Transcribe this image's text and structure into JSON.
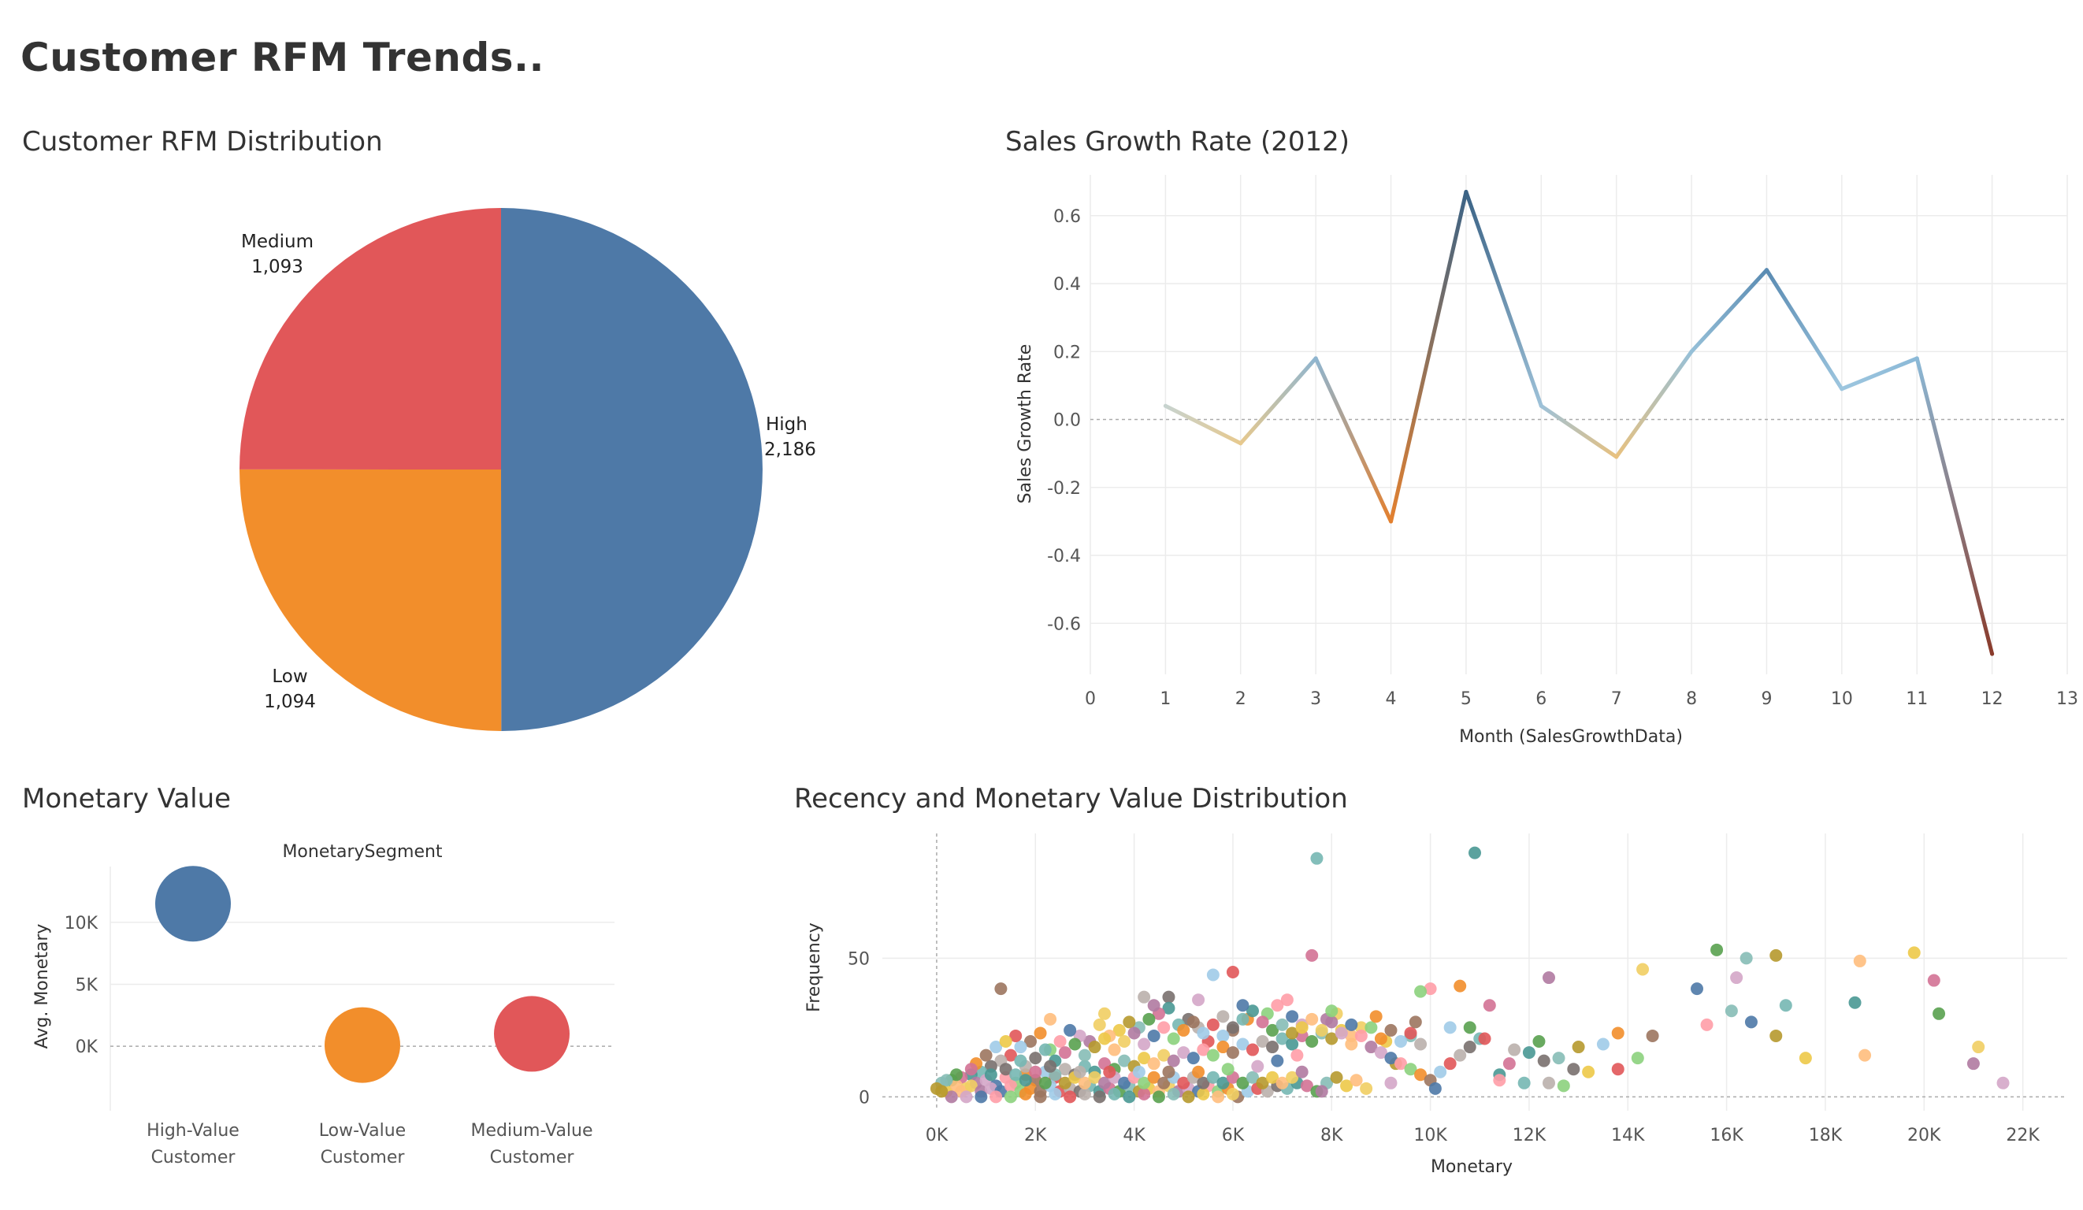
{
  "dashboard": {
    "title": "Customer RFM Trends.."
  },
  "panels": {
    "pie_title": "Customer RFM Distribution",
    "line_title": "Sales Growth Rate (2012)",
    "bubble_title": "Monetary Value",
    "scatter_title": "Recency and Monetary Value Distribution"
  },
  "chart_data": [
    {
      "type": "pie",
      "slices": [
        {
          "label": "High",
          "value_label": "2,186",
          "value": 2186,
          "color": "#4e79a7"
        },
        {
          "label": "Low",
          "value_label": "1,094",
          "value": 1094,
          "color": "#f28e2b"
        },
        {
          "label": "Medium",
          "value_label": "1,093",
          "value": 1093,
          "color": "#e15759"
        }
      ]
    },
    {
      "type": "line",
      "xlabel": "Month (SalesGrowthData)",
      "ylabel": "Sales Growth Rate",
      "xlim": [
        0,
        13
      ],
      "ylim": [
        -0.75,
        0.72
      ],
      "xticks": [
        0,
        1,
        2,
        3,
        4,
        5,
        6,
        7,
        8,
        9,
        10,
        11,
        12,
        13
      ],
      "yticks": [
        0.6,
        0.4,
        0.2,
        0.0,
        -0.2,
        -0.4,
        -0.6
      ],
      "ytick_labels": [
        "0.6",
        "0.4",
        "0.2",
        "0.0",
        "-0.2",
        "-0.4",
        "-0.6"
      ],
      "x": [
        1,
        2,
        3,
        4,
        5,
        6,
        7,
        8,
        9,
        10,
        11,
        12
      ],
      "y": [
        0.04,
        -0.07,
        0.18,
        -0.3,
        0.67,
        0.04,
        -0.11,
        0.2,
        0.44,
        0.09,
        0.18,
        -0.69
      ],
      "colors": [
        "#c7d3cf",
        "#e7c98e",
        "#8fb5cf",
        "#e3802f",
        "#3b6386",
        "#9dc1d8",
        "#e8c17f",
        "#96c0d8",
        "#5a8bb2",
        "#9dc6df",
        "#8bb9d7",
        "#8a3b2b"
      ]
    },
    {
      "type": "scatter",
      "subtitle": "MonetarySegment",
      "ylabel": "Avg. Monetary",
      "ylim": [
        -5200,
        14500
      ],
      "yticks": [
        0,
        5000,
        10000
      ],
      "ytick_labels": [
        "0K",
        "5K",
        "10K"
      ],
      "categories": [
        "High-Value Customer",
        "Low-Value Customer",
        "Medium-Value Customer"
      ],
      "category_lines": [
        [
          "High-Value",
          "Customer"
        ],
        [
          "Low-Value",
          "Customer"
        ],
        [
          "Medium-Value",
          "Customer"
        ]
      ],
      "values": [
        11500,
        100,
        1000
      ],
      "colors": [
        "#4e79a7",
        "#f28e2b",
        "#e15759"
      ]
    },
    {
      "type": "scatter",
      "xlabel": "Monetary",
      "ylabel": "Frequency",
      "xlim": [
        -1100,
        22900
      ],
      "ylim": [
        -5,
        95
      ],
      "xticks": [
        0,
        2000,
        4000,
        6000,
        8000,
        10000,
        12000,
        14000,
        16000,
        18000,
        20000,
        22000
      ],
      "xtick_labels": [
        "0K",
        "2K",
        "4K",
        "6K",
        "8K",
        "10K",
        "12K",
        "14K",
        "16K",
        "18K",
        "20K",
        "22K"
      ],
      "yticks": [
        0,
        50
      ],
      "ytick_labels": [
        "0",
        "50"
      ],
      "palette": [
        "#4e79a7",
        "#f28e2b",
        "#e15759",
        "#76b7b2",
        "#59a14f",
        "#edc948",
        "#b07aa1",
        "#ff9da7",
        "#9c755f",
        "#bab0ac",
        "#499894",
        "#86bcb6",
        "#ffbe7d",
        "#d4a6c8",
        "#8cd17d",
        "#a0cbe8",
        "#79706e",
        "#d37295",
        "#b6992d",
        "#f1ce63"
      ],
      "points": [
        [
          7700,
          86
        ],
        [
          10900,
          88
        ],
        [
          7600,
          51
        ],
        [
          15800,
          53
        ],
        [
          16400,
          50
        ],
        [
          17000,
          51
        ],
        [
          19800,
          52
        ],
        [
          18700,
          49
        ],
        [
          14300,
          46
        ],
        [
          12400,
          43
        ],
        [
          16200,
          43
        ],
        [
          15400,
          39
        ],
        [
          10000,
          39
        ],
        [
          9800,
          38
        ],
        [
          10600,
          40
        ],
        [
          1300,
          39
        ],
        [
          5600,
          44
        ],
        [
          6000,
          45
        ],
        [
          4200,
          36
        ],
        [
          4700,
          36
        ],
        [
          17200,
          33
        ],
        [
          18600,
          34
        ],
        [
          20200,
          42
        ],
        [
          20300,
          30
        ],
        [
          16100,
          31
        ],
        [
          17000,
          22
        ],
        [
          17600,
          14
        ],
        [
          18800,
          15
        ],
        [
          21100,
          18
        ],
        [
          21000,
          12
        ],
        [
          21600,
          5
        ],
        [
          16500,
          27
        ],
        [
          15600,
          26
        ],
        [
          14200,
          14
        ],
        [
          13800,
          23
        ],
        [
          14500,
          22
        ],
        [
          13500,
          19
        ],
        [
          13800,
          10
        ],
        [
          12400,
          5
        ],
        [
          12900,
          10
        ],
        [
          11900,
          5
        ],
        [
          12000,
          16
        ],
        [
          11200,
          33
        ],
        [
          10800,
          25
        ],
        [
          9600,
          22
        ],
        [
          9300,
          12
        ],
        [
          9100,
          20
        ],
        [
          8400,
          19
        ],
        [
          8100,
          30
        ],
        [
          7900,
          28
        ],
        [
          7400,
          26
        ],
        [
          7200,
          29
        ],
        [
          6900,
          33
        ],
        [
          6700,
          30
        ],
        [
          6300,
          28
        ],
        [
          6000,
          24
        ],
        [
          5800,
          22
        ],
        [
          5500,
          20
        ],
        [
          5300,
          25
        ],
        [
          5100,
          28
        ],
        [
          4900,
          26
        ],
        [
          4700,
          32
        ],
        [
          4500,
          30
        ],
        [
          4300,
          28
        ],
        [
          4100,
          25
        ],
        [
          3900,
          27
        ],
        [
          3700,
          24
        ],
        [
          3500,
          22
        ],
        [
          3300,
          26
        ],
        [
          3100,
          20
        ],
        [
          2900,
          22
        ],
        [
          2700,
          24
        ],
        [
          2500,
          20
        ],
        [
          2300,
          17
        ],
        [
          2100,
          23
        ],
        [
          1900,
          20
        ],
        [
          1700,
          18
        ],
        [
          1500,
          15
        ],
        [
          1300,
          13
        ],
        [
          1100,
          11
        ],
        [
          900,
          9
        ],
        [
          700,
          8
        ],
        [
          500,
          7
        ],
        [
          300,
          6
        ],
        [
          100,
          5
        ],
        [
          0,
          3
        ],
        [
          200,
          2
        ],
        [
          400,
          4
        ],
        [
          600,
          3
        ],
        [
          800,
          5
        ],
        [
          1000,
          6
        ],
        [
          1200,
          4
        ],
        [
          1400,
          7
        ],
        [
          1600,
          5
        ],
        [
          1800,
          8
        ],
        [
          2000,
          6
        ],
        [
          2200,
          9
        ],
        [
          2400,
          7
        ],
        [
          2600,
          10
        ],
        [
          2800,
          8
        ],
        [
          3000,
          11
        ],
        [
          3200,
          9
        ],
        [
          3400,
          12
        ],
        [
          3600,
          10
        ],
        [
          3800,
          13
        ],
        [
          4000,
          11
        ],
        [
          4200,
          14
        ],
        [
          4400,
          12
        ],
        [
          4600,
          15
        ],
        [
          4800,
          13
        ],
        [
          5000,
          16
        ],
        [
          5200,
          14
        ],
        [
          5400,
          17
        ],
        [
          5600,
          15
        ],
        [
          5800,
          18
        ],
        [
          6000,
          16
        ],
        [
          6200,
          19
        ],
        [
          6400,
          17
        ],
        [
          6600,
          20
        ],
        [
          6800,
          18
        ],
        [
          7000,
          21
        ],
        [
          7200,
          19
        ],
        [
          7400,
          22
        ],
        [
          7600,
          20
        ],
        [
          7800,
          23
        ],
        [
          8000,
          21
        ],
        [
          8200,
          24
        ],
        [
          8400,
          22
        ],
        [
          8600,
          25
        ],
        [
          8800,
          18
        ],
        [
          9000,
          16
        ],
        [
          9200,
          14
        ],
        [
          9400,
          12
        ],
        [
          9600,
          10
        ],
        [
          9800,
          8
        ],
        [
          10000,
          6
        ],
        [
          10200,
          9
        ],
        [
          10400,
          12
        ],
        [
          10600,
          15
        ],
        [
          10800,
          18
        ],
        [
          11000,
          21
        ],
        [
          11400,
          8
        ],
        [
          11600,
          12
        ],
        [
          12200,
          20
        ],
        [
          12600,
          14
        ],
        [
          13000,
          18
        ],
        [
          13200,
          9
        ],
        [
          500,
          2
        ],
        [
          700,
          4
        ],
        [
          900,
          2
        ],
        [
          1100,
          3
        ],
        [
          1300,
          2
        ],
        [
          1500,
          4
        ],
        [
          1700,
          2
        ],
        [
          1900,
          3
        ],
        [
          2100,
          2
        ],
        [
          2300,
          4
        ],
        [
          2500,
          2
        ],
        [
          2700,
          3
        ],
        [
          2900,
          2
        ],
        [
          3100,
          4
        ],
        [
          3300,
          2
        ],
        [
          3500,
          3
        ],
        [
          3700,
          2
        ],
        [
          3900,
          4
        ],
        [
          4100,
          2
        ],
        [
          4300,
          3
        ],
        [
          4500,
          2
        ],
        [
          4700,
          4
        ],
        [
          4900,
          2
        ],
        [
          5100,
          3
        ],
        [
          5300,
          2
        ],
        [
          5500,
          4
        ],
        [
          5700,
          2
        ],
        [
          5900,
          3
        ],
        [
          6100,
          0
        ],
        [
          6300,
          2
        ],
        [
          6500,
          3
        ],
        [
          6700,
          2
        ],
        [
          6900,
          4
        ],
        [
          7100,
          3
        ],
        [
          7300,
          5
        ],
        [
          7500,
          4
        ],
        [
          7700,
          2
        ],
        [
          7900,
          5
        ],
        [
          8100,
          7
        ],
        [
          8300,
          4
        ],
        [
          8500,
          6
        ],
        [
          8700,
          3
        ],
        [
          300,
          0
        ],
        [
          600,
          0
        ],
        [
          900,
          0
        ],
        [
          1200,
          0
        ],
        [
          1500,
          0
        ],
        [
          1800,
          1
        ],
        [
          2100,
          0
        ],
        [
          2400,
          1
        ],
        [
          2700,
          0
        ],
        [
          3000,
          1
        ],
        [
          3300,
          0
        ],
        [
          3600,
          1
        ],
        [
          3900,
          0
        ],
        [
          4200,
          1
        ],
        [
          4500,
          0
        ],
        [
          4800,
          1
        ],
        [
          5100,
          0
        ],
        [
          5400,
          1
        ],
        [
          5700,
          0
        ],
        [
          6000,
          1
        ],
        [
          7800,
          2
        ],
        [
          9200,
          5
        ],
        [
          10100,
          3
        ],
        [
          11400,
          6
        ],
        [
          12700,
          4
        ],
        [
          800,
          12
        ],
        [
          1000,
          15
        ],
        [
          1200,
          18
        ],
        [
          1600,
          22
        ],
        [
          1800,
          11
        ],
        [
          2000,
          14
        ],
        [
          2200,
          17
        ],
        [
          2400,
          13
        ],
        [
          2600,
          16
        ],
        [
          2800,
          19
        ],
        [
          3000,
          15
        ],
        [
          3200,
          18
        ],
        [
          3400,
          21
        ],
        [
          3600,
          17
        ],
        [
          3800,
          20
        ],
        [
          4000,
          23
        ],
        [
          4200,
          19
        ],
        [
          4400,
          22
        ],
        [
          4600,
          25
        ],
        [
          4800,
          21
        ],
        [
          5000,
          24
        ],
        [
          5200,
          27
        ],
        [
          5400,
          23
        ],
        [
          5600,
          26
        ],
        [
          5800,
          29
        ],
        [
          6000,
          25
        ],
        [
          6200,
          28
        ],
        [
          6400,
          31
        ],
        [
          6600,
          27
        ],
        [
          6800,
          24
        ],
        [
          7000,
          26
        ],
        [
          7200,
          23
        ],
        [
          7400,
          25
        ],
        [
          7600,
          28
        ],
        [
          7800,
          24
        ],
        [
          8000,
          27
        ],
        [
          8200,
          23
        ],
        [
          8400,
          26
        ],
        [
          8600,
          22
        ],
        [
          8800,
          25
        ],
        [
          9000,
          21
        ],
        [
          9200,
          24
        ],
        [
          9400,
          20
        ],
        [
          9600,
          23
        ],
        [
          9800,
          19
        ],
        [
          1400,
          10
        ],
        [
          1600,
          8
        ],
        [
          1800,
          6
        ],
        [
          2000,
          9
        ],
        [
          2200,
          5
        ],
        [
          2400,
          8
        ],
        [
          2600,
          5
        ],
        [
          2800,
          7
        ],
        [
          3000,
          5
        ],
        [
          3200,
          7
        ],
        [
          3400,
          5
        ],
        [
          3600,
          7
        ],
        [
          3800,
          5
        ],
        [
          4000,
          7
        ],
        [
          4200,
          5
        ],
        [
          4400,
          7
        ],
        [
          4600,
          5
        ],
        [
          4800,
          7
        ],
        [
          5000,
          5
        ],
        [
          5200,
          7
        ],
        [
          5400,
          5
        ],
        [
          5600,
          7
        ],
        [
          5800,
          5
        ],
        [
          6000,
          7
        ],
        [
          6200,
          5
        ],
        [
          6400,
          7
        ],
        [
          6600,
          5
        ],
        [
          6800,
          7
        ],
        [
          7000,
          5
        ],
        [
          7200,
          7
        ],
        [
          7400,
          9
        ],
        [
          6500,
          11
        ],
        [
          6900,
          13
        ],
        [
          7300,
          15
        ],
        [
          5900,
          10
        ],
        [
          5300,
          9
        ],
        [
          4700,
          9
        ],
        [
          4100,
          9
        ],
        [
          3500,
          9
        ],
        [
          2900,
          9
        ],
        [
          2300,
          11
        ],
        [
          1700,
          13
        ],
        [
          1100,
          8
        ],
        [
          700,
          10
        ],
        [
          400,
          8
        ],
        [
          200,
          6
        ],
        [
          100,
          2
        ],
        [
          1400,
          20
        ],
        [
          2300,
          28
        ],
        [
          3400,
          30
        ],
        [
          4400,
          33
        ],
        [
          5300,
          35
        ],
        [
          6200,
          33
        ],
        [
          7100,
          35
        ],
        [
          8000,
          31
        ],
        [
          8900,
          29
        ],
        [
          9700,
          27
        ],
        [
          10400,
          25
        ],
        [
          11100,
          21
        ],
        [
          11700,
          17
        ],
        [
          12300,
          13
        ]
      ]
    }
  ]
}
